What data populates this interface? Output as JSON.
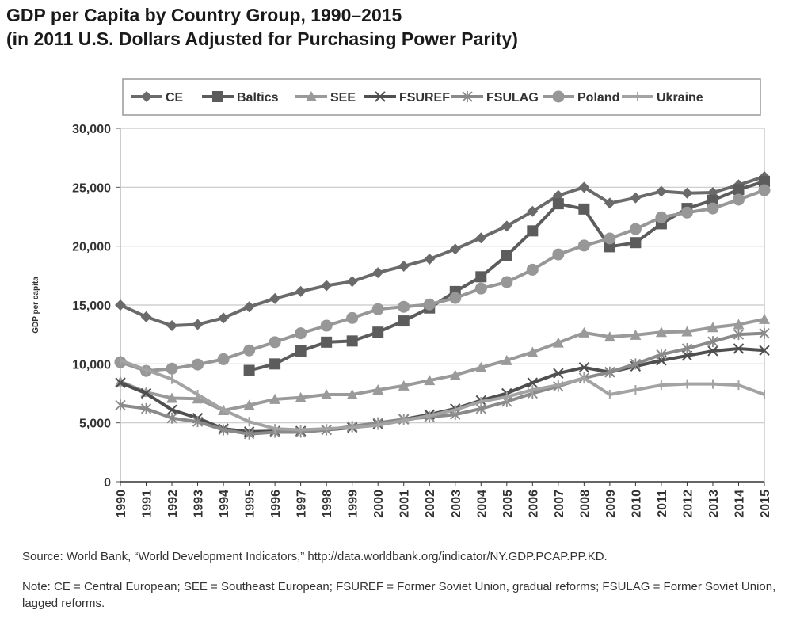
{
  "title_line1": "GDP per Capita by Country Group, 1990–2015",
  "title_line2": "(in 2011 U.S. Dollars Adjusted for Purchasing Power Parity)",
  "source": "Source: World Bank, “World Development Indicators,” http://data.worldbank.org/indicator/NY.GDP.PCAP.PP.KD.",
  "note": "Note: CE = Central European; SEE = Southeast European; FSUREF = Former Soviet Union, gradual reforms; FSULAG = Former Soviet Union, lagged reforms.",
  "chart_data": {
    "type": "line",
    "title": "GDP per Capita by Country Group, 1990–2015",
    "xlabel": "",
    "ylabel": "GDP per capita",
    "ylim": [
      0,
      30000
    ],
    "yticks": [
      0,
      5000,
      10000,
      15000,
      20000,
      25000,
      30000
    ],
    "ytick_labels": [
      "0",
      "5,000",
      "10,000",
      "15,000",
      "20,000",
      "25,000",
      "30,000"
    ],
    "grid": "horizontal",
    "legend_placement": "top",
    "x": [
      1990,
      1991,
      1992,
      1993,
      1994,
      1995,
      1996,
      1997,
      1998,
      1999,
      2000,
      2001,
      2002,
      2003,
      2004,
      2005,
      2006,
      2007,
      2008,
      2009,
      2010,
      2011,
      2012,
      2013,
      2014,
      2015
    ],
    "series": [
      {
        "name": "CE",
        "marker": "diamond",
        "color": "#6a6a6a",
        "values": [
          15000,
          14000,
          13250,
          13350,
          13900,
          14850,
          15550,
          16150,
          16650,
          17000,
          17750,
          18300,
          18900,
          19750,
          20700,
          21700,
          22950,
          24300,
          25000,
          23650,
          24100,
          24650,
          24500,
          24550,
          25200,
          25900
        ]
      },
      {
        "name": "Baltics",
        "marker": "square",
        "color": "#5c5c5c",
        "values": [
          null,
          null,
          null,
          null,
          null,
          9450,
          10000,
          11100,
          11850,
          11950,
          12700,
          13650,
          14750,
          16150,
          17400,
          19200,
          21300,
          23600,
          23150,
          19950,
          20300,
          21900,
          23200,
          23900,
          24800,
          25500
        ]
      },
      {
        "name": "SEE",
        "marker": "triangle",
        "color": "#9a9a9a",
        "values": [
          8500,
          7600,
          7100,
          7050,
          6050,
          6500,
          7000,
          7150,
          7400,
          7400,
          7800,
          8150,
          8600,
          9050,
          9700,
          10300,
          11000,
          11800,
          12650,
          12300,
          12450,
          12700,
          12750,
          13100,
          13350,
          13800
        ]
      },
      {
        "name": "FSUREF",
        "marker": "x",
        "color": "#4f4f4f",
        "values": [
          8400,
          7500,
          6100,
          5400,
          4500,
          4250,
          4300,
          4300,
          4400,
          4600,
          4900,
          5300,
          5700,
          6200,
          6900,
          7500,
          8400,
          9200,
          9700,
          9300,
          9800,
          10300,
          10700,
          11100,
          11300,
          11150
        ]
      },
      {
        "name": "FSULAG",
        "marker": "star",
        "color": "#8a8a8a",
        "values": [
          6500,
          6200,
          5400,
          5100,
          4400,
          4050,
          4200,
          4200,
          4400,
          4700,
          5000,
          5300,
          5500,
          5700,
          6200,
          6800,
          7500,
          8100,
          8800,
          9300,
          10000,
          10800,
          11300,
          11900,
          12500,
          12600
        ]
      },
      {
        "name": "Poland",
        "marker": "circle",
        "color": "#979797",
        "values": [
          10150,
          9400,
          9600,
          9950,
          10400,
          11150,
          11850,
          12600,
          13250,
          13900,
          14650,
          14850,
          15050,
          15600,
          16400,
          16950,
          18000,
          19300,
          20050,
          20650,
          21450,
          22450,
          22850,
          23200,
          23950,
          24750
        ]
      },
      {
        "name": "Ukraine",
        "marker": "plus",
        "color": "#a3a3a3",
        "values": [
          10300,
          9500,
          8700,
          7400,
          6100,
          5100,
          4500,
          4400,
          4500,
          4600,
          4800,
          5200,
          5600,
          6100,
          6800,
          7200,
          7800,
          8200,
          8800,
          7400,
          7800,
          8200,
          8300,
          8300,
          8200,
          7400
        ]
      }
    ]
  }
}
